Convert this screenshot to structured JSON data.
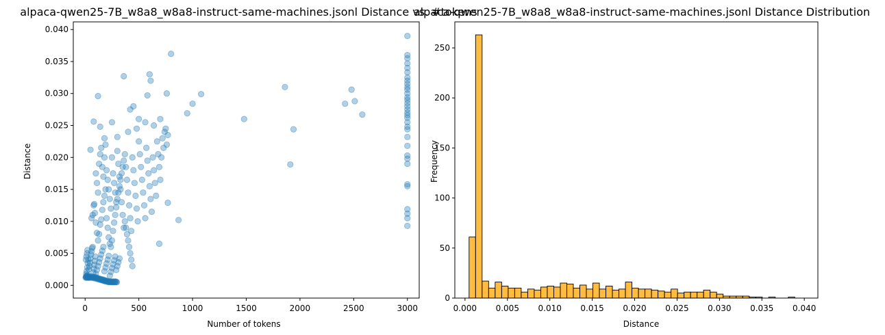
{
  "chart_data": [
    {
      "type": "scatter",
      "title": "alpaca-qwen25-7B_w8a8_w8a8-instruct-same-machines.jsonl Distance vs. #tokens",
      "xlabel": "Number of tokens",
      "ylabel": "Distance",
      "xlim": [
        -110,
        3110
      ],
      "ylim": [
        -0.002,
        0.0412
      ],
      "xticks": [
        "0",
        "500",
        "1000",
        "1500",
        "2000",
        "2500",
        "3000"
      ],
      "yticks": [
        "0.000",
        "0.005",
        "0.010",
        "0.015",
        "0.020",
        "0.025",
        "0.030",
        "0.035",
        "0.040"
      ],
      "color": "#1f77b4",
      "alpha": 0.35,
      "grid": false,
      "points": [
        [
          5,
          0.0012
        ],
        [
          8,
          0.0013
        ],
        [
          10,
          0.0014
        ],
        [
          12,
          0.0012
        ],
        [
          15,
          0.0015
        ],
        [
          18,
          0.0013
        ],
        [
          20,
          0.0012
        ],
        [
          22,
          0.0016
        ],
        [
          25,
          0.0013
        ],
        [
          28,
          0.0012
        ],
        [
          30,
          0.0014
        ],
        [
          33,
          0.0012
        ],
        [
          36,
          0.0013
        ],
        [
          40,
          0.0012
        ],
        [
          45,
          0.0013
        ],
        [
          50,
          0.0012
        ],
        [
          55,
          0.0014
        ],
        [
          60,
          0.0012
        ],
        [
          65,
          0.0013
        ],
        [
          70,
          0.0012
        ],
        [
          75,
          0.0013
        ],
        [
          80,
          0.0012
        ],
        [
          85,
          0.0011
        ],
        [
          90,
          0.0012
        ],
        [
          95,
          0.0013
        ],
        [
          100,
          0.0011
        ],
        [
          105,
          0.0012
        ],
        [
          110,
          0.001
        ],
        [
          115,
          0.0011
        ],
        [
          120,
          0.001
        ],
        [
          125,
          0.0011
        ],
        [
          130,
          0.0009
        ],
        [
          135,
          0.001
        ],
        [
          140,
          0.0009
        ],
        [
          145,
          0.001
        ],
        [
          150,
          0.0008
        ],
        [
          155,
          0.0009
        ],
        [
          160,
          0.0008
        ],
        [
          165,
          0.0009
        ],
        [
          170,
          0.0007
        ],
        [
          175,
          0.0008
        ],
        [
          180,
          0.0007
        ],
        [
          185,
          0.0008
        ],
        [
          190,
          0.0006
        ],
        [
          195,
          0.0007
        ],
        [
          200,
          0.0006
        ],
        [
          205,
          0.0007
        ],
        [
          210,
          0.0006
        ],
        [
          215,
          0.0005
        ],
        [
          220,
          0.0006
        ],
        [
          225,
          0.0005
        ],
        [
          230,
          0.0006
        ],
        [
          235,
          0.0005
        ],
        [
          240,
          0.0006
        ],
        [
          245,
          0.0005
        ],
        [
          250,
          0.0005
        ],
        [
          255,
          0.0006
        ],
        [
          260,
          0.0005
        ],
        [
          265,
          0.0005
        ],
        [
          270,
          0.0006
        ],
        [
          275,
          0.0005
        ],
        [
          280,
          0.0005
        ],
        [
          285,
          0.0006
        ],
        [
          290,
          0.0005
        ],
        [
          295,
          0.0005
        ],
        [
          10,
          0.0018
        ],
        [
          15,
          0.0022
        ],
        [
          20,
          0.0028
        ],
        [
          25,
          0.0035
        ],
        [
          30,
          0.004
        ],
        [
          8,
          0.004
        ],
        [
          12,
          0.0045
        ],
        [
          18,
          0.005
        ],
        [
          22,
          0.0055
        ],
        [
          35,
          0.0025
        ],
        [
          40,
          0.003
        ],
        [
          45,
          0.0035
        ],
        [
          50,
          0.0042
        ],
        [
          55,
          0.0048
        ],
        [
          60,
          0.0053
        ],
        [
          65,
          0.0058
        ],
        [
          70,
          0.006
        ],
        [
          75,
          0.002
        ],
        [
          80,
          0.0026
        ],
        [
          85,
          0.0032
        ],
        [
          90,
          0.0038
        ],
        [
          95,
          0.0045
        ],
        [
          100,
          0.0018
        ],
        [
          110,
          0.0024
        ],
        [
          120,
          0.003
        ],
        [
          130,
          0.0036
        ],
        [
          140,
          0.0042
        ],
        [
          150,
          0.0048
        ],
        [
          160,
          0.0054
        ],
        [
          170,
          0.006
        ],
        [
          180,
          0.0022
        ],
        [
          190,
          0.0028
        ],
        [
          200,
          0.0034
        ],
        [
          210,
          0.004
        ],
        [
          220,
          0.0046
        ],
        [
          230,
          0.0015
        ],
        [
          240,
          0.0021
        ],
        [
          250,
          0.0027
        ],
        [
          260,
          0.0033
        ],
        [
          270,
          0.0039
        ],
        [
          280,
          0.0045
        ],
        [
          290,
          0.0024
        ],
        [
          300,
          0.003
        ],
        [
          310,
          0.0036
        ],
        [
          320,
          0.0042
        ],
        [
          60,
          0.0105
        ],
        [
          70,
          0.011
        ],
        [
          80,
          0.0125
        ],
        [
          85,
          0.0127
        ],
        [
          90,
          0.0113
        ],
        [
          100,
          0.0098
        ],
        [
          110,
          0.0082
        ],
        [
          120,
          0.007
        ],
        [
          130,
          0.008
        ],
        [
          140,
          0.0095
        ],
        [
          150,
          0.0103
        ],
        [
          160,
          0.0118
        ],
        [
          170,
          0.013
        ],
        [
          180,
          0.014
        ],
        [
          190,
          0.015
        ],
        [
          200,
          0.0105
        ],
        [
          210,
          0.009
        ],
        [
          220,
          0.0075
        ],
        [
          230,
          0.0065
        ],
        [
          240,
          0.006
        ],
        [
          250,
          0.007
        ],
        [
          260,
          0.0085
        ],
        [
          270,
          0.0098
        ],
        [
          280,
          0.011
        ],
        [
          290,
          0.0122
        ],
        [
          300,
          0.0135
        ],
        [
          310,
          0.0145
        ],
        [
          320,
          0.0155
        ],
        [
          330,
          0.0165
        ],
        [
          340,
          0.0175
        ],
        [
          350,
          0.0185
        ],
        [
          360,
          0.0195
        ],
        [
          370,
          0.01
        ],
        [
          380,
          0.009
        ],
        [
          390,
          0.008
        ],
        [
          400,
          0.007
        ],
        [
          410,
          0.006
        ],
        [
          420,
          0.005
        ],
        [
          430,
          0.004
        ],
        [
          440,
          0.003
        ],
        [
          100,
          0.0175
        ],
        [
          110,
          0.016
        ],
        [
          120,
          0.0145
        ],
        [
          130,
          0.019
        ],
        [
          140,
          0.0205
        ],
        [
          150,
          0.0215
        ],
        [
          160,
          0.0185
        ],
        [
          170,
          0.017
        ],
        [
          180,
          0.02
        ],
        [
          190,
          0.022
        ],
        [
          200,
          0.018
        ],
        [
          210,
          0.0165
        ],
        [
          220,
          0.015
        ],
        [
          230,
          0.0135
        ],
        [
          240,
          0.012
        ],
        [
          250,
          0.02
        ],
        [
          260,
          0.0175
        ],
        [
          270,
          0.016
        ],
        [
          280,
          0.0145
        ],
        [
          290,
          0.013
        ],
        [
          300,
          0.021
        ],
        [
          310,
          0.019
        ],
        [
          320,
          0.017
        ],
        [
          330,
          0.015
        ],
        [
          340,
          0.013
        ],
        [
          350,
          0.011
        ],
        [
          360,
          0.009
        ],
        [
          370,
          0.0205
        ],
        [
          380,
          0.0185
        ],
        [
          390,
          0.0165
        ],
        [
          400,
          0.0145
        ],
        [
          410,
          0.0125
        ],
        [
          420,
          0.0105
        ],
        [
          430,
          0.0085
        ],
        [
          440,
          0.02
        ],
        [
          450,
          0.018
        ],
        [
          460,
          0.016
        ],
        [
          470,
          0.014
        ],
        [
          480,
          0.012
        ],
        [
          490,
          0.01
        ],
        [
          500,
          0.0225
        ],
        [
          510,
          0.0205
        ],
        [
          520,
          0.0185
        ],
        [
          530,
          0.0165
        ],
        [
          540,
          0.0145
        ],
        [
          550,
          0.0125
        ],
        [
          560,
          0.0105
        ],
        [
          570,
          0.0215
        ],
        [
          580,
          0.0195
        ],
        [
          590,
          0.0175
        ],
        [
          600,
          0.0155
        ],
        [
          610,
          0.0135
        ],
        [
          620,
          0.0115
        ],
        [
          630,
          0.02
        ],
        [
          640,
          0.018
        ],
        [
          650,
          0.016
        ],
        [
          660,
          0.014
        ],
        [
          670,
          0.0225
        ],
        [
          680,
          0.0205
        ],
        [
          690,
          0.0185
        ],
        [
          700,
          0.0165
        ],
        [
          710,
          0.02
        ],
        [
          720,
          0.023
        ],
        [
          730,
          0.0215
        ],
        [
          740,
          0.024
        ],
        [
          750,
          0.0245
        ],
        [
          760,
          0.022
        ],
        [
          770,
          0.0235
        ],
        [
          50,
          0.0212
        ],
        [
          80,
          0.0256
        ],
        [
          120,
          0.0296
        ],
        [
          140,
          0.0248
        ],
        [
          180,
          0.023
        ],
        [
          250,
          0.0255
        ],
        [
          300,
          0.0232
        ],
        [
          360,
          0.0327
        ],
        [
          400,
          0.024
        ],
        [
          420,
          0.0275
        ],
        [
          450,
          0.028
        ],
        [
          480,
          0.0245
        ],
        [
          500,
          0.026
        ],
        [
          560,
          0.0255
        ],
        [
          580,
          0.0297
        ],
        [
          600,
          0.033
        ],
        [
          610,
          0.032
        ],
        [
          640,
          0.025
        ],
        [
          700,
          0.026
        ],
        [
          760,
          0.03
        ],
        [
          800,
          0.0362
        ],
        [
          870,
          0.0102
        ],
        [
          690,
          0.0065
        ],
        [
          770,
          0.0129
        ],
        [
          950,
          0.0269
        ],
        [
          1000,
          0.0284
        ],
        [
          1080,
          0.0299
        ],
        [
          1480,
          0.026
        ],
        [
          1860,
          0.031
        ],
        [
          1910,
          0.0189
        ],
        [
          1940,
          0.0244
        ],
        [
          2420,
          0.0284
        ],
        [
          2480,
          0.0306
        ],
        [
          2510,
          0.0288
        ],
        [
          2580,
          0.0267
        ],
        [
          3000,
          0.039
        ],
        [
          3000,
          0.036
        ],
        [
          3000,
          0.0355
        ],
        [
          3000,
          0.0347
        ],
        [
          3000,
          0.034
        ],
        [
          3000,
          0.0333
        ],
        [
          3000,
          0.0325
        ],
        [
          3000,
          0.032
        ],
        [
          3000,
          0.0315
        ],
        [
          3000,
          0.031
        ],
        [
          3000,
          0.0306
        ],
        [
          3000,
          0.03
        ],
        [
          3000,
          0.0294
        ],
        [
          3000,
          0.029
        ],
        [
          3000,
          0.0285
        ],
        [
          3000,
          0.028
        ],
        [
          3000,
          0.0275
        ],
        [
          3000,
          0.027
        ],
        [
          3000,
          0.0266
        ],
        [
          3000,
          0.0262
        ],
        [
          3000,
          0.0255
        ],
        [
          3000,
          0.0248
        ],
        [
          3000,
          0.0244
        ],
        [
          3000,
          0.0232
        ],
        [
          3000,
          0.0218
        ],
        [
          3000,
          0.0203
        ],
        [
          3000,
          0.0198
        ],
        [
          3000,
          0.019
        ],
        [
          3000,
          0.0158
        ],
        [
          3000,
          0.0155
        ],
        [
          3000,
          0.0119
        ],
        [
          3000,
          0.0112
        ],
        [
          3000,
          0.0105
        ],
        [
          3000,
          0.0093
        ]
      ]
    },
    {
      "type": "bar",
      "title": "alpaca-qwen25-7B_w8a8_w8a8-instruct-same-machines.jsonl Distance Distribution",
      "xlabel": "Distance",
      "ylabel": "Frequency",
      "xlim": [
        -0.0012,
        0.0416
      ],
      "ylim": [
        0,
        276
      ],
      "xticks": [
        "0.000",
        "0.005",
        "0.010",
        "0.015",
        "0.020",
        "0.025",
        "0.030",
        "0.035",
        "0.040"
      ],
      "yticks": [
        "0",
        "50",
        "100",
        "150",
        "200",
        "250"
      ],
      "color": "#ffa500",
      "edgecolor": "#000000",
      "bin_start": 0.00048,
      "bin_width": 0.000768,
      "values": [
        61,
        263,
        17,
        10,
        16,
        12,
        10,
        10,
        6,
        9,
        8,
        11,
        12,
        11,
        15,
        14,
        10,
        13,
        9,
        15,
        9,
        12,
        8,
        9,
        16,
        10,
        9,
        9,
        8,
        7,
        6,
        9,
        5,
        6,
        6,
        6,
        8,
        6,
        4,
        2,
        2,
        2,
        2,
        1,
        1,
        0,
        1,
        0,
        0,
        1
      ]
    }
  ]
}
